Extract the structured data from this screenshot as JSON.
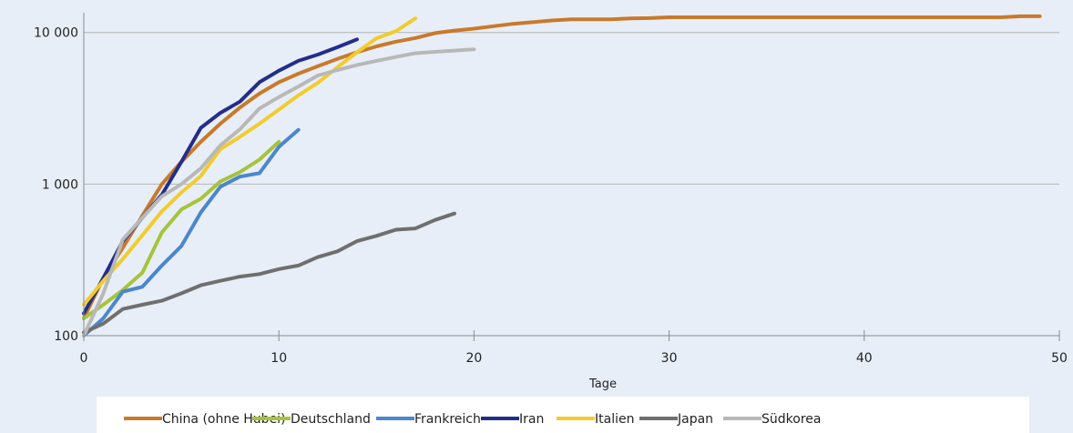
{
  "chart_data": {
    "type": "line",
    "title": "",
    "xlabel": "Tage",
    "ylabel": "",
    "xlim": [
      0,
      50
    ],
    "ylim": [
      100,
      13500
    ],
    "yscale": "log",
    "x_ticks": [
      0,
      10,
      20,
      30,
      40,
      50
    ],
    "x_tick_labels": [
      "0",
      "10",
      "20",
      "30",
      "40",
      "50"
    ],
    "y_ticks": [
      100,
      1000,
      10000
    ],
    "y_tick_labels": [
      "100",
      "1 000",
      "10 000"
    ],
    "grid": "horizontal-major",
    "legend_position": "bottom",
    "series": [
      {
        "name": "China (ohne Hubei)",
        "color": "#c87a2a",
        "points": [
          [
            0,
            130
          ],
          [
            1,
            240
          ],
          [
            2,
            380
          ],
          [
            3,
            620
          ],
          [
            4,
            1000
          ],
          [
            5,
            1400
          ],
          [
            6,
            1900
          ],
          [
            7,
            2500
          ],
          [
            8,
            3200
          ],
          [
            9,
            3950
          ],
          [
            10,
            4700
          ],
          [
            11,
            5350
          ],
          [
            12,
            6000
          ],
          [
            13,
            6700
          ],
          [
            14,
            7400
          ],
          [
            15,
            8100
          ],
          [
            16,
            8700
          ],
          [
            17,
            9200
          ],
          [
            18,
            9900
          ],
          [
            19,
            10300
          ],
          [
            20,
            10600
          ],
          [
            21,
            11000
          ],
          [
            22,
            11400
          ],
          [
            23,
            11700
          ],
          [
            24,
            12000
          ],
          [
            25,
            12200
          ],
          [
            26,
            12200
          ],
          [
            27,
            12200
          ],
          [
            28,
            12400
          ],
          [
            29,
            12450
          ],
          [
            30,
            12600
          ],
          [
            32,
            12600
          ],
          [
            35,
            12600
          ],
          [
            40,
            12600
          ],
          [
            45,
            12600
          ],
          [
            47,
            12600
          ],
          [
            48,
            12800
          ],
          [
            49,
            12800
          ]
        ]
      },
      {
        "name": "Deutschland",
        "color": "#a6c43a",
        "points": [
          [
            0,
            130
          ],
          [
            1,
            160
          ],
          [
            2,
            200
          ],
          [
            3,
            260
          ],
          [
            4,
            480
          ],
          [
            5,
            680
          ],
          [
            6,
            800
          ],
          [
            7,
            1040
          ],
          [
            8,
            1200
          ],
          [
            9,
            1450
          ],
          [
            10,
            1900
          ]
        ]
      },
      {
        "name": "Frankreich",
        "color": "#4b86cf",
        "points": [
          [
            0,
            100
          ],
          [
            1,
            130
          ],
          [
            2,
            195
          ],
          [
            3,
            210
          ],
          [
            4,
            290
          ],
          [
            5,
            390
          ],
          [
            6,
            650
          ],
          [
            7,
            960
          ],
          [
            8,
            1120
          ],
          [
            9,
            1180
          ],
          [
            10,
            1760
          ],
          [
            11,
            2280
          ]
        ]
      },
      {
        "name": "Iran",
        "color": "#232e8a",
        "points": [
          [
            0,
            140
          ],
          [
            1,
            240
          ],
          [
            2,
            420
          ],
          [
            3,
            600
          ],
          [
            4,
            850
          ],
          [
            5,
            1400
          ],
          [
            6,
            2350
          ],
          [
            7,
            2950
          ],
          [
            8,
            3500
          ],
          [
            9,
            4700
          ],
          [
            10,
            5600
          ],
          [
            11,
            6500
          ],
          [
            12,
            7150
          ],
          [
            13,
            8000
          ],
          [
            14,
            9000
          ]
        ]
      },
      {
        "name": "Italien",
        "color": "#f2cc2c",
        "points": [
          [
            0,
            160
          ],
          [
            1,
            230
          ],
          [
            2,
            320
          ],
          [
            3,
            460
          ],
          [
            4,
            660
          ],
          [
            5,
            880
          ],
          [
            6,
            1130
          ],
          [
            7,
            1700
          ],
          [
            8,
            2050
          ],
          [
            9,
            2500
          ],
          [
            10,
            3100
          ],
          [
            11,
            3850
          ],
          [
            12,
            4650
          ],
          [
            13,
            5900
          ],
          [
            14,
            7400
          ],
          [
            15,
            9150
          ],
          [
            16,
            10200
          ],
          [
            17,
            12400
          ]
        ]
      },
      {
        "name": "Japan",
        "color": "#6f6f6f",
        "points": [
          [
            0,
            105
          ],
          [
            1,
            120
          ],
          [
            2,
            150
          ],
          [
            3,
            160
          ],
          [
            4,
            170
          ],
          [
            5,
            190
          ],
          [
            6,
            215
          ],
          [
            7,
            230
          ],
          [
            8,
            245
          ],
          [
            9,
            255
          ],
          [
            10,
            275
          ],
          [
            11,
            290
          ],
          [
            12,
            330
          ],
          [
            13,
            360
          ],
          [
            14,
            420
          ],
          [
            15,
            455
          ],
          [
            16,
            500
          ],
          [
            17,
            510
          ],
          [
            18,
            580
          ],
          [
            19,
            640
          ]
        ]
      },
      {
        "name": "Südkorea",
        "color": "#b8b8b8",
        "points": [
          [
            0,
            100
          ],
          [
            1,
            190
          ],
          [
            2,
            430
          ],
          [
            3,
            600
          ],
          [
            4,
            830
          ],
          [
            5,
            1000
          ],
          [
            6,
            1270
          ],
          [
            7,
            1800
          ],
          [
            8,
            2300
          ],
          [
            9,
            3150
          ],
          [
            10,
            3750
          ],
          [
            11,
            4400
          ],
          [
            12,
            5200
          ],
          [
            13,
            5650
          ],
          [
            14,
            6100
          ],
          [
            15,
            6500
          ],
          [
            16,
            6900
          ],
          [
            17,
            7300
          ],
          [
            18,
            7450
          ],
          [
            19,
            7600
          ],
          [
            20,
            7750
          ]
        ]
      }
    ]
  }
}
